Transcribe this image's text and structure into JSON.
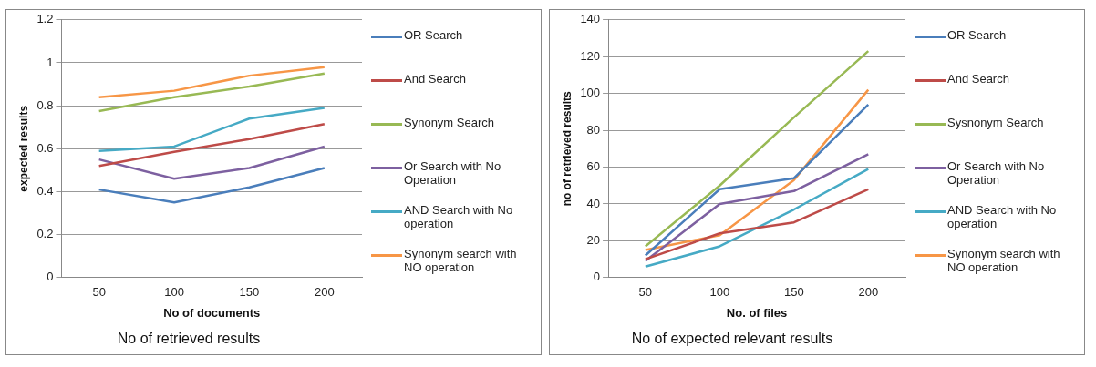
{
  "chart_data": [
    {
      "type": "line",
      "title": "No of retrieved results",
      "xlabel": "No of documents",
      "ylabel": "expected results",
      "categories": [
        "50",
        "100",
        "150",
        "200"
      ],
      "ylim": [
        0,
        1.2
      ],
      "yticks": [
        0,
        0.2,
        0.4,
        0.6,
        0.8,
        1,
        1.2
      ],
      "grid": "y",
      "legend": "right",
      "marker": "none",
      "series": [
        {
          "name": "OR Search",
          "color": "#4a7ebb",
          "values": [
            0.41,
            0.35,
            0.42,
            0.51
          ]
        },
        {
          "name": "And Search",
          "color": "#be4b48",
          "values": [
            0.52,
            0.585,
            0.645,
            0.715
          ]
        },
        {
          "name": "Synonym Search",
          "color": "#98b954",
          "values": [
            0.775,
            0.84,
            0.89,
            0.95
          ]
        },
        {
          "name": "Or Search with No Operation",
          "color": "#7d60a0",
          "values": [
            0.55,
            0.46,
            0.51,
            0.61
          ]
        },
        {
          "name": "AND Search with No operation",
          "color": "#46aac5",
          "values": [
            0.59,
            0.61,
            0.74,
            0.79
          ]
        },
        {
          "name": "Synonym search with NO operation",
          "color": "#f79646",
          "values": [
            0.84,
            0.87,
            0.94,
            0.98
          ]
        }
      ]
    },
    {
      "type": "line",
      "title": "No of expected relevant results",
      "xlabel": "No. of files",
      "ylabel": "no of retrieved results",
      "categories": [
        "50",
        "100",
        "150",
        "200"
      ],
      "ylim": [
        0,
        140
      ],
      "yticks": [
        0,
        20,
        40,
        60,
        80,
        100,
        120,
        140
      ],
      "grid": "y",
      "legend": "right",
      "marker": "none",
      "series": [
        {
          "name": "OR Search",
          "color": "#4a7ebb",
          "values": [
            12,
            48,
            54,
            94
          ]
        },
        {
          "name": "And Search",
          "color": "#be4b48",
          "values": [
            10,
            24,
            30,
            48
          ]
        },
        {
          "name": "Sysnonym Search",
          "color": "#98b954",
          "values": [
            17,
            50,
            87,
            123
          ]
        },
        {
          "name": "Or Search with No Operation",
          "color": "#7d60a0",
          "values": [
            9,
            40,
            47,
            67
          ]
        },
        {
          "name": "AND Search with No operation",
          "color": "#46aac5",
          "values": [
            6,
            17,
            37,
            59
          ]
        },
        {
          "name": "Synonym search with NO operation",
          "color": "#f79646",
          "values": [
            15,
            23,
            53,
            102
          ]
        }
      ]
    }
  ]
}
